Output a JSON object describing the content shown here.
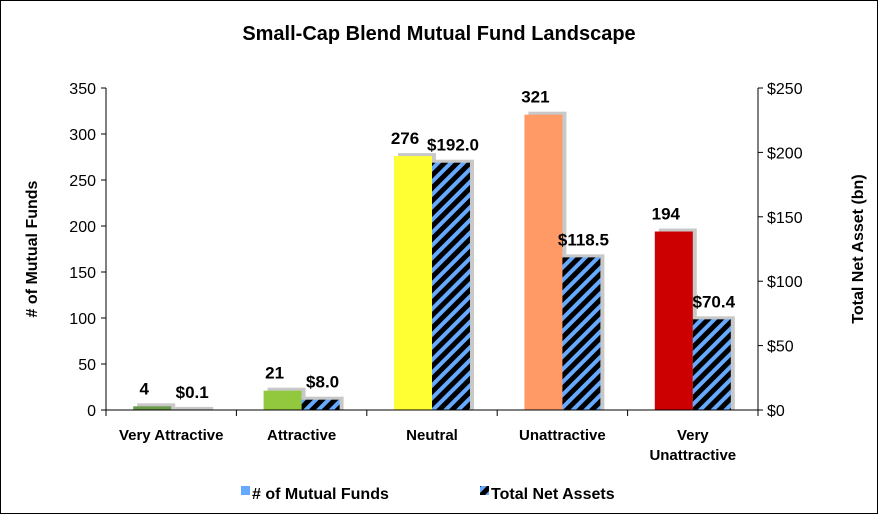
{
  "chart_data": {
    "type": "bar",
    "title": "Small-Cap Blend Mutual Fund Landscape",
    "categories": [
      "Very Attractive",
      "Attractive",
      "Neutral",
      "Unattractive",
      "Very Unattractive"
    ],
    "series": [
      {
        "name": "# of Mutual Funds",
        "axis": "left",
        "values": [
          4,
          21,
          276,
          321,
          194
        ],
        "labels": [
          "4",
          "21",
          "276",
          "321",
          "194"
        ],
        "colors": [
          "#6a9a4a",
          "#92c83e",
          "#ffff33",
          "#ff9966",
          "#cc0000"
        ]
      },
      {
        "name": "Total Net Assets",
        "axis": "right",
        "values": [
          0.1,
          8.0,
          192.0,
          118.5,
          70.4
        ],
        "labels": [
          "$0.1",
          "$8.0",
          "$192.0",
          "$118.5",
          "$70.4"
        ],
        "pattern": "diagonal-stripes",
        "colors": [
          "#000000",
          "#66aaff"
        ]
      }
    ],
    "y_left": {
      "label": "# of Mutual Funds",
      "ylim": [
        0,
        350
      ],
      "ticks": [
        "0",
        "50",
        "100",
        "150",
        "200",
        "250",
        "300",
        "350"
      ]
    },
    "y_right": {
      "label": "Total Net Asset (bn)",
      "ylim": [
        0,
        250
      ],
      "ticks": [
        "$0",
        "$50",
        "$100",
        "$150",
        "$200",
        "$250"
      ]
    },
    "legend_position": "bottom",
    "legend": [
      {
        "label": "# of Mutual Funds",
        "color": "#66aaff"
      },
      {
        "label": "Total Net Assets",
        "color": "#66aaff",
        "pattern": "diagonal-stripes"
      }
    ],
    "grid": false
  }
}
